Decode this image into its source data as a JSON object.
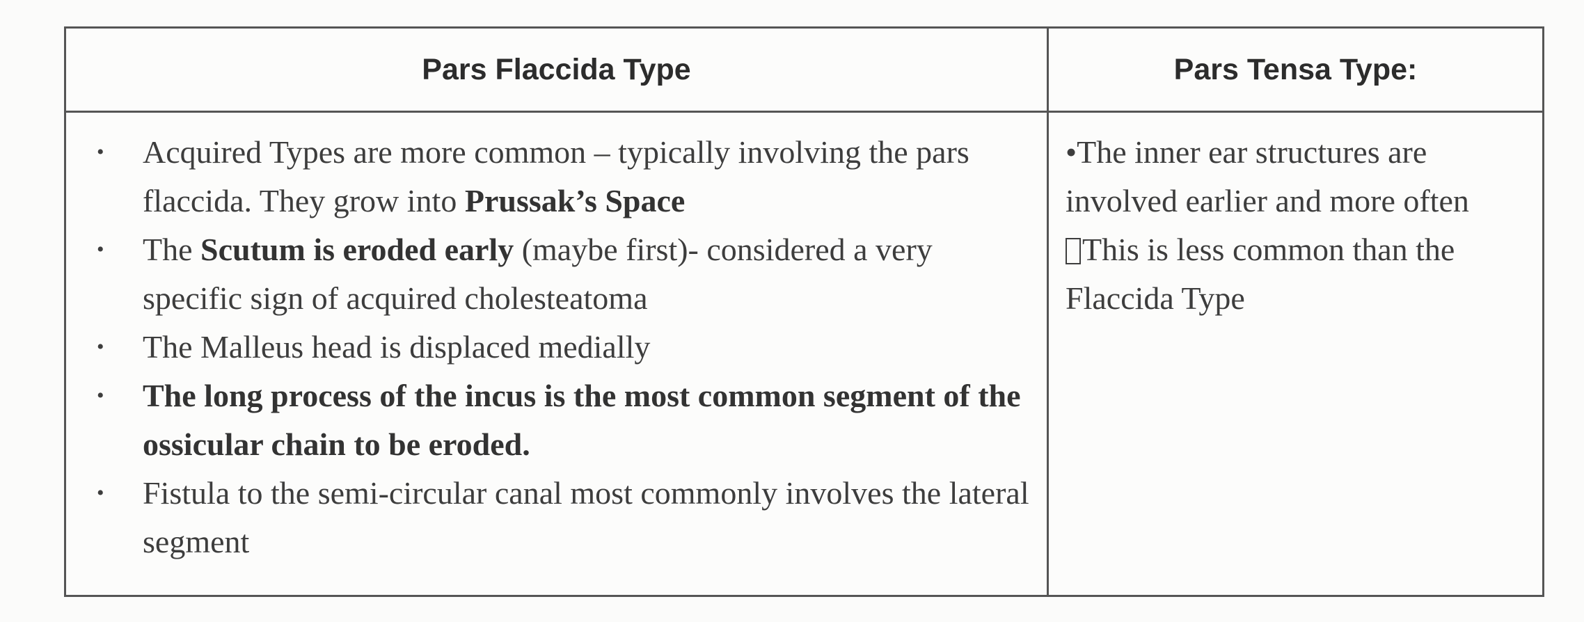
{
  "table": {
    "headers": [
      "Pars Flaccida Type",
      "Pars Tensa Type:"
    ],
    "flaccida_bullets": [
      {
        "parts": [
          {
            "text": "Acquired Types are more common – typically involving the pars flaccida. They grow into ",
            "bold": false
          },
          {
            "text": "Prussak’s Space",
            "bold": true
          }
        ]
      },
      {
        "parts": [
          {
            "text": "The ",
            "bold": false
          },
          {
            "text": "Scutum is eroded early",
            "bold": true
          },
          {
            "text": " (maybe first)- considered a very specific sign of acquired cholesteatoma",
            "bold": false
          }
        ]
      },
      {
        "parts": [
          {
            "text": "The Malleus head is displaced medially",
            "bold": false
          }
        ]
      },
      {
        "parts": [
          {
            "text": "The long process of the incus is the most common segment of the ossicular chain to be eroded.",
            "bold": true
          }
        ]
      },
      {
        "parts": [
          {
            "text": "Fistula to the semi-circular canal most commonly involves the lateral segment",
            "bold": false
          }
        ]
      }
    ],
    "tensa_text": [
      "•The inner ear structures are involved earlier and more often",
      "This is less common than the Flaccida Type"
    ]
  }
}
